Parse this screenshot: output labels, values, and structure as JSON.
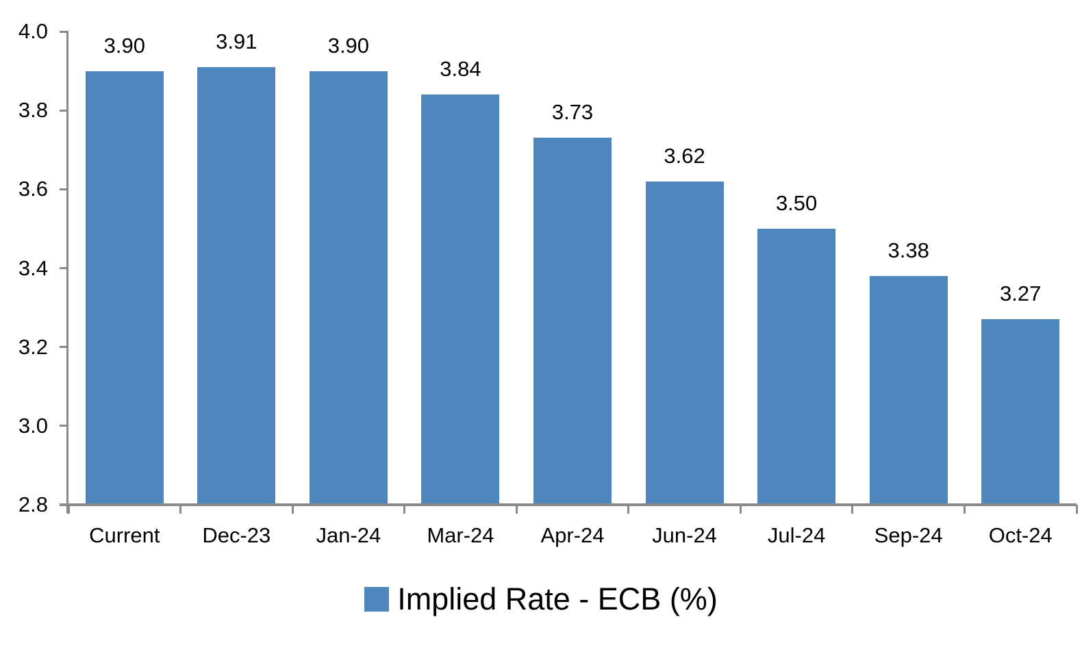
{
  "chart_data": {
    "type": "bar",
    "title": "",
    "xlabel": "",
    "ylabel": "",
    "categories": [
      "Current",
      "Dec-23",
      "Jan-24",
      "Mar-24",
      "Apr-24",
      "Jun-24",
      "Jul-24",
      "Sep-24",
      "Oct-24"
    ],
    "series": [
      {
        "name": "Implied Rate - ECB (%)",
        "values": [
          3.9,
          3.91,
          3.9,
          3.84,
          3.73,
          3.62,
          3.5,
          3.38,
          3.27
        ]
      }
    ],
    "data_labels": [
      "3.90",
      "3.91",
      "3.90",
      "3.84",
      "3.73",
      "3.62",
      "3.50",
      "3.38",
      "3.27"
    ],
    "ylim": [
      2.8,
      4.0
    ],
    "yticks": [
      {
        "value": 2.8,
        "label": "2.8"
      },
      {
        "value": 3.0,
        "label": "3.0"
      },
      {
        "value": 3.2,
        "label": "3.2"
      },
      {
        "value": 3.4,
        "label": "3.4"
      },
      {
        "value": 3.6,
        "label": "3.6"
      },
      {
        "value": 3.8,
        "label": "3.8"
      },
      {
        "value": 4.0,
        "label": "4.0"
      }
    ],
    "grid": false,
    "legend": {
      "label": "Implied Rate - ECB (%)",
      "position": "bottom"
    },
    "colors": {
      "bar": "#4E87BE",
      "axis": "#898989",
      "text": "#000000",
      "background": "#FFFFFF"
    }
  }
}
